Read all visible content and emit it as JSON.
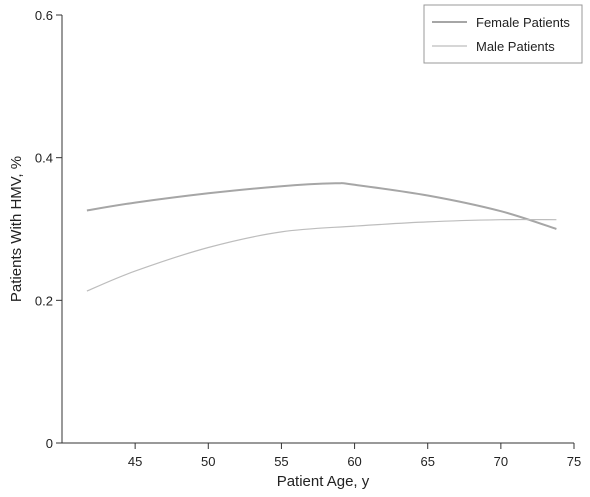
{
  "chart_data": {
    "type": "line",
    "title": "",
    "xlabel": "Patient Age, y",
    "ylabel": "Patients With HMV, %",
    "xlim": [
      40,
      75
    ],
    "ylim": [
      0,
      0.6
    ],
    "x_ticks": [
      "45",
      "50",
      "55",
      "60",
      "65",
      "70",
      "75"
    ],
    "y_ticks": [
      "0",
      "0.2",
      "0.4",
      "0.6"
    ],
    "grid": false,
    "legend_position": "top-right",
    "series": [
      {
        "name": "Female Patients",
        "color": "#a6a6a6",
        "x": [
          41.7,
          45,
          50,
          55,
          58.7,
          60,
          65,
          70,
          73.8
        ],
        "y": [
          0.326,
          0.337,
          0.35,
          0.36,
          0.364,
          0.362,
          0.347,
          0.325,
          0.3
        ]
      },
      {
        "name": "Male Patients",
        "color": "#bdbdbd",
        "x": [
          41.7,
          45,
          50,
          55,
          60,
          65,
          70,
          73.8
        ],
        "y": [
          0.213,
          0.241,
          0.274,
          0.296,
          0.304,
          0.31,
          0.313,
          0.313
        ]
      }
    ]
  }
}
